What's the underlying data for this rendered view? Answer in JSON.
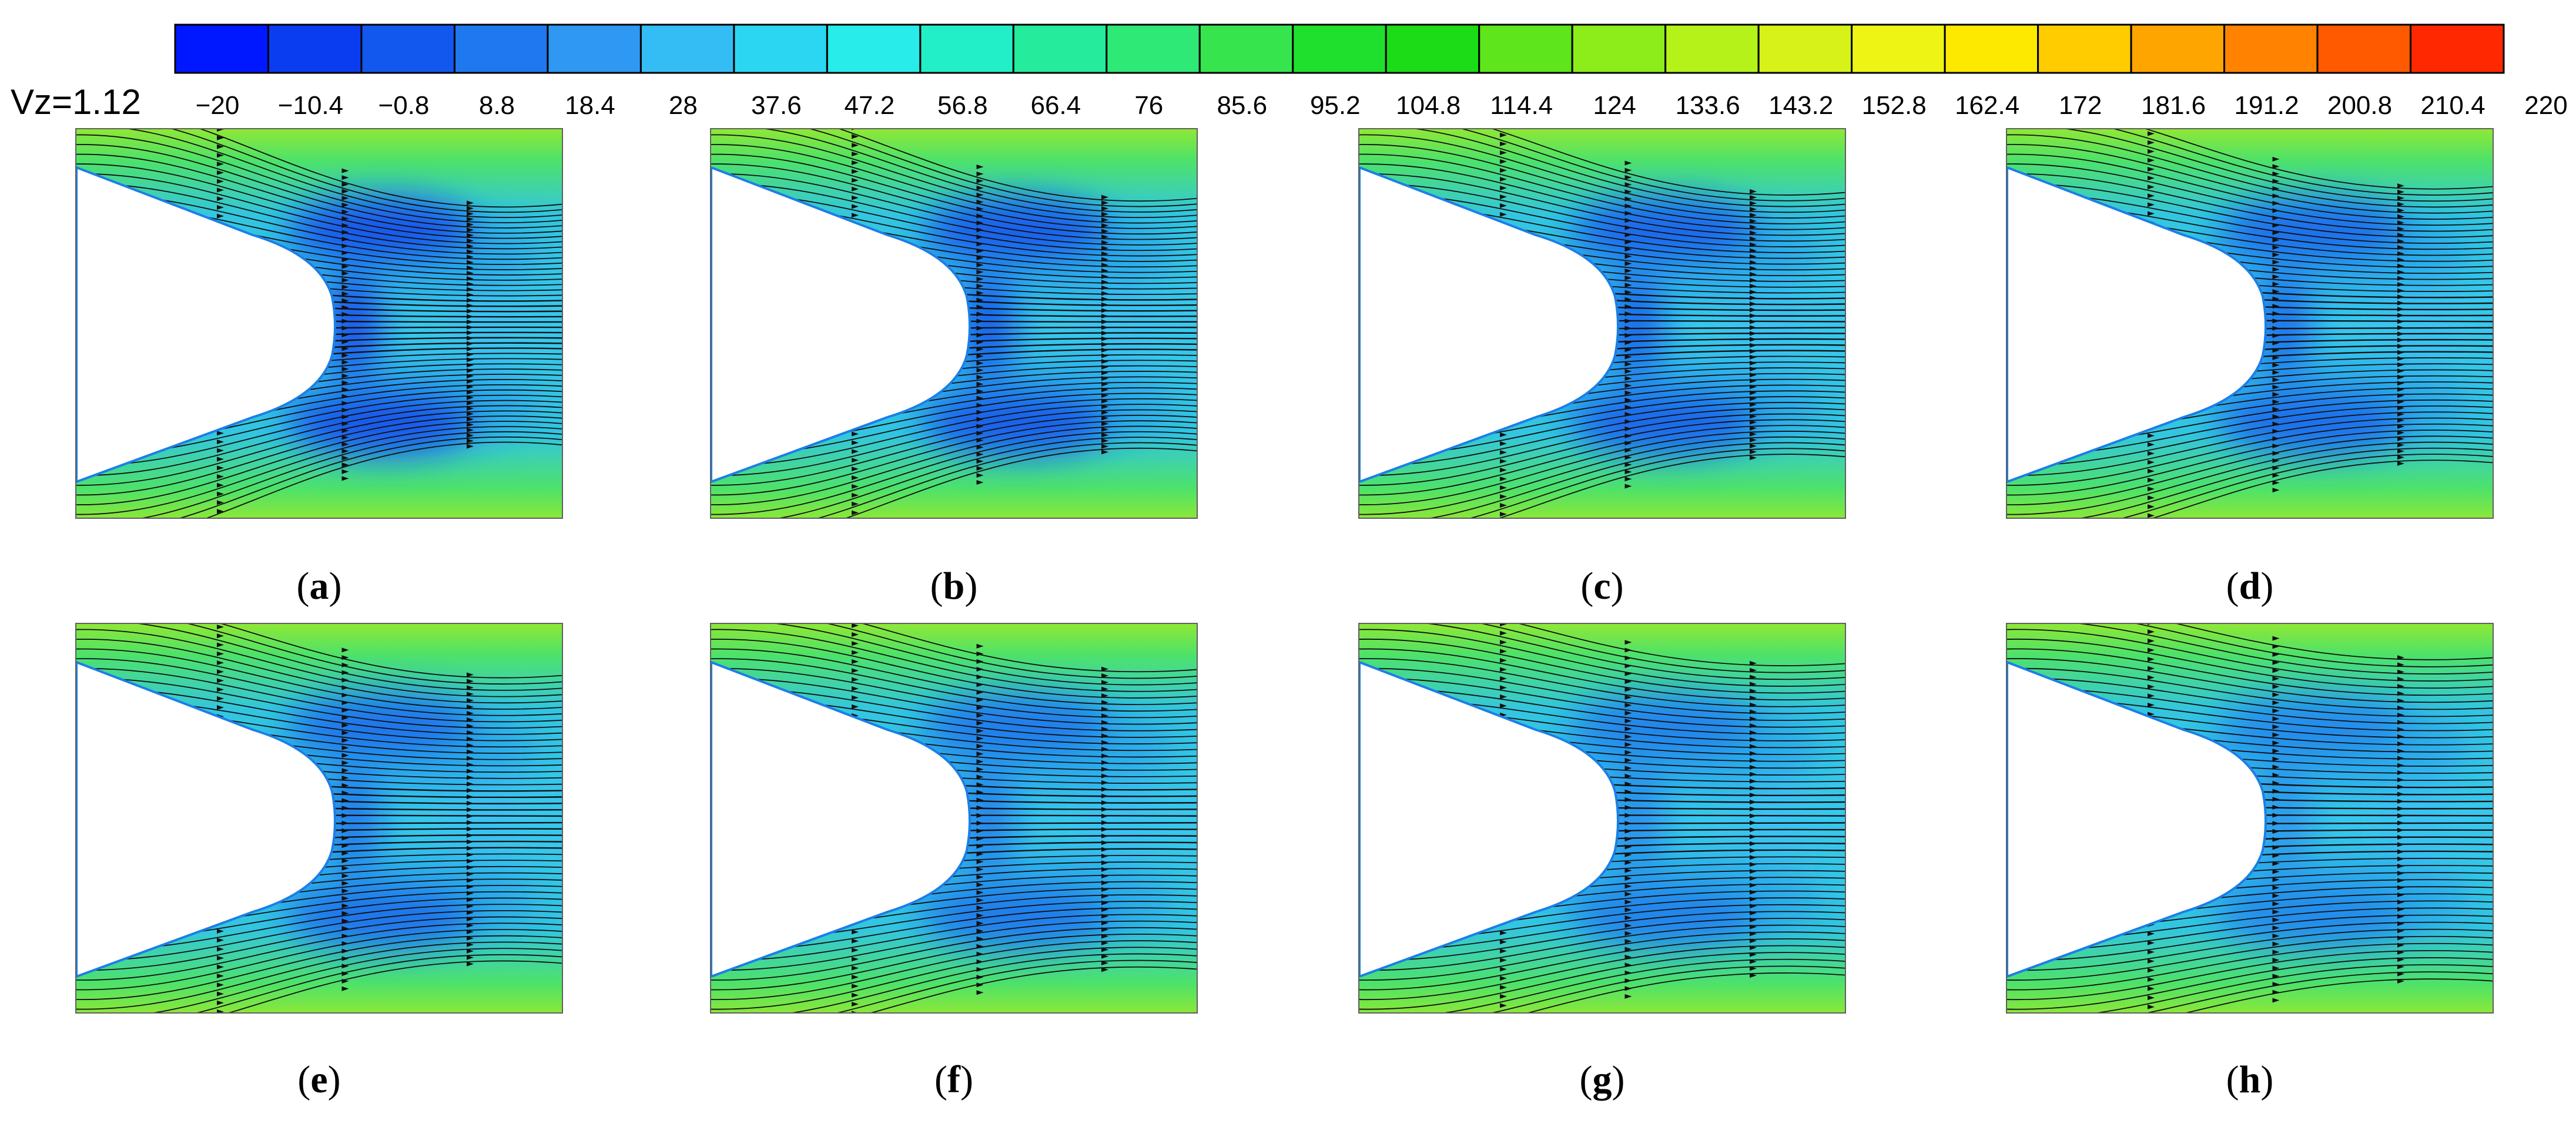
{
  "legend": {
    "variable_label": "Vz=1.12",
    "tick_labels": [
      "−20",
      "−10.4",
      "−0.8",
      "8.8",
      "18.4",
      "28",
      "37.6",
      "47.2",
      "56.8",
      "66.4",
      "76",
      "85.6",
      "95.2",
      "104.8",
      "114.4",
      "124",
      "133.6",
      "143.2",
      "152.8",
      "162.4",
      "172",
      "181.6",
      "191.2",
      "200.8",
      "210.4",
      "220"
    ],
    "colors": [
      "#0018ff",
      "#0a3cf0",
      "#1358ee",
      "#1f78f0",
      "#2f98f2",
      "#34bcf5",
      "#2ad6f2",
      "#27ecea",
      "#22efc8",
      "#24ec9c",
      "#2ee975",
      "#36e54e",
      "#20e02e",
      "#1bdc16",
      "#5ee51b",
      "#8ced1a",
      "#b4f21a",
      "#d6f218",
      "#eef515",
      "#fde800",
      "#ffcc00",
      "#ffa500",
      "#ff8300",
      "#ff5a00",
      "#ff2800"
    ]
  },
  "panels": [
    {
      "id": "a",
      "label_open": "(",
      "label_letter": "a",
      "label_close": ")"
    },
    {
      "id": "b",
      "label_open": "(",
      "label_letter": "b",
      "label_close": ")"
    },
    {
      "id": "c",
      "label_open": "(",
      "label_letter": "c",
      "label_close": ")"
    },
    {
      "id": "d",
      "label_open": "(",
      "label_letter": "d",
      "label_close": ")"
    },
    {
      "id": "e",
      "label_open": "(",
      "label_letter": "e",
      "label_close": ")"
    },
    {
      "id": "f",
      "label_open": "(",
      "label_letter": "f",
      "label_close": ")"
    },
    {
      "id": "g",
      "label_open": "(",
      "label_letter": "g",
      "label_close": ")"
    },
    {
      "id": "h",
      "label_open": "(",
      "label_letter": "h",
      "label_close": ")"
    }
  ]
}
